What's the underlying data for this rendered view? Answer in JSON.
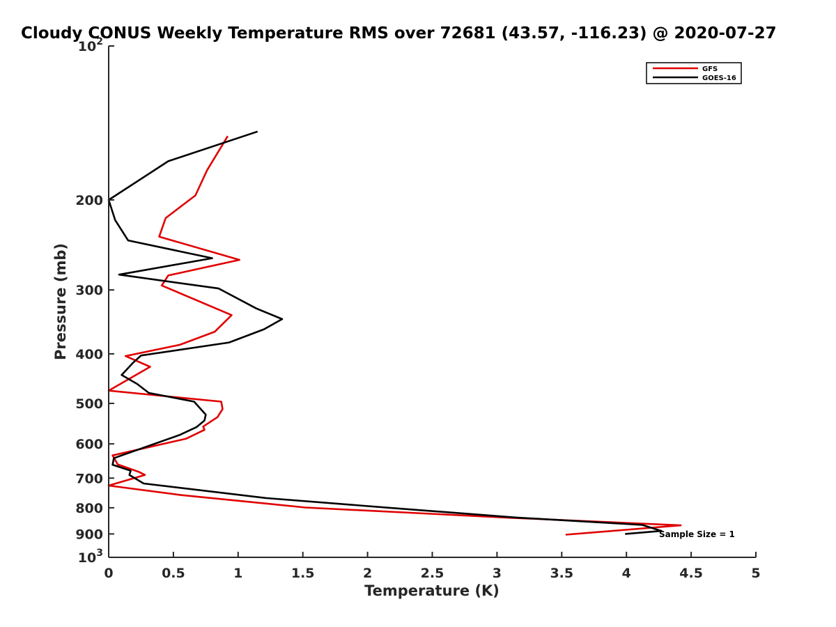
{
  "chart_data": {
    "type": "line",
    "title": "Cloudy CONUS Weekly Temperature RMS over 72681 (43.57, -116.23) @ 2020-07-27",
    "xlabel": "Temperature (K)",
    "ylabel": "Pressure (mb)",
    "xlim": [
      0,
      5
    ],
    "ylim": [
      100,
      1000
    ],
    "y_scale": "log",
    "y_reversed": true,
    "x_ticks": [
      "0",
      "0.5",
      "1",
      "1.5",
      "2",
      "2.5",
      "3",
      "3.5",
      "4",
      "4.5",
      "5"
    ],
    "y_ticks": [
      {
        "value": 100,
        "label": "10",
        "exp": "2"
      },
      {
        "value": 200,
        "label": "200"
      },
      {
        "value": 300,
        "label": "300"
      },
      {
        "value": 400,
        "label": "400"
      },
      {
        "value": 500,
        "label": "500"
      },
      {
        "value": 600,
        "label": "600"
      },
      {
        "value": 700,
        "label": "700"
      },
      {
        "value": 800,
        "label": "800"
      },
      {
        "value": 900,
        "label": "900"
      },
      {
        "value": 1000,
        "label": "10",
        "exp": "3"
      }
    ],
    "grid": false,
    "legend": "top-right",
    "annotation": "Sample Size = 1",
    "series": [
      {
        "name": "GFS",
        "color": "#e00000",
        "points": [
          [
            0.92,
            150
          ],
          [
            0.76,
            175
          ],
          [
            0.67,
            196
          ],
          [
            0.44,
            217
          ],
          [
            0.39,
            236
          ],
          [
            1.01,
            262
          ],
          [
            0.46,
            281
          ],
          [
            0.41,
            294
          ],
          [
            0.95,
            336
          ],
          [
            0.82,
            362
          ],
          [
            0.55,
            384
          ],
          [
            0.13,
            404
          ],
          [
            0.32,
            424
          ],
          [
            0.0,
            472
          ],
          [
            0.87,
            496
          ],
          [
            0.88,
            513
          ],
          [
            0.84,
            532
          ],
          [
            0.73,
            555
          ],
          [
            0.74,
            563
          ],
          [
            0.6,
            586
          ],
          [
            0.03,
            632
          ],
          [
            0.07,
            658
          ],
          [
            0.23,
            680
          ],
          [
            0.28,
            690
          ],
          [
            0.0,
            724
          ],
          [
            0.55,
            755
          ],
          [
            1.52,
            799
          ],
          [
            3.07,
            836
          ],
          [
            4.42,
            866
          ],
          [
            3.53,
            903
          ]
        ]
      },
      {
        "name": "GOES-16",
        "color": "#000000",
        "points": [
          [
            1.15,
            147
          ],
          [
            0.46,
            168
          ],
          [
            0.0,
            200
          ],
          [
            0.05,
            219
          ],
          [
            0.15,
            240
          ],
          [
            0.8,
            260
          ],
          [
            0.08,
            280
          ],
          [
            0.85,
            298
          ],
          [
            1.14,
            326
          ],
          [
            1.34,
            342
          ],
          [
            1.2,
            358
          ],
          [
            0.93,
            380
          ],
          [
            0.25,
            403
          ],
          [
            0.19,
            416
          ],
          [
            0.1,
            440
          ],
          [
            0.22,
            458
          ],
          [
            0.31,
            477
          ],
          [
            0.66,
            496
          ],
          [
            0.75,
            526
          ],
          [
            0.74,
            540
          ],
          [
            0.68,
            556
          ],
          [
            0.55,
            576
          ],
          [
            0.04,
            640
          ],
          [
            0.03,
            659
          ],
          [
            0.17,
            677
          ],
          [
            0.16,
            690
          ],
          [
            0.27,
            717
          ],
          [
            1.22,
            766
          ],
          [
            2.17,
            800
          ],
          [
            3.15,
            836
          ],
          [
            4.12,
            864
          ],
          [
            4.27,
            888
          ],
          [
            3.99,
            900
          ]
        ]
      }
    ]
  }
}
